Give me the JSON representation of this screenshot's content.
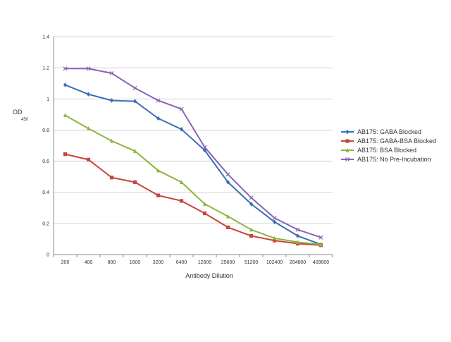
{
  "chart_data": {
    "type": "line",
    "title": "",
    "xlabel": "Antibody Dilution",
    "ylabel": "OD",
    "ylabel_subscript": "450",
    "categories": [
      "200",
      "400",
      "800",
      "1600",
      "3200",
      "6400",
      "12800",
      "25600",
      "51200",
      "102400",
      "204800",
      "409600"
    ],
    "ylim": [
      0,
      1.4
    ],
    "yticks": [
      "0",
      "0.2",
      "0.4",
      "0.6",
      "0.8",
      "1",
      "1.2",
      "1.4"
    ],
    "grid": "horizontal",
    "legend_position": "right",
    "series": [
      {
        "name": "AB175: GABA Blocked",
        "color": "#3a6fb5",
        "marker": "diamond",
        "values": [
          1.09,
          1.03,
          0.99,
          0.985,
          0.875,
          0.805,
          0.67,
          0.465,
          0.325,
          0.21,
          0.12,
          0.065
        ]
      },
      {
        "name": "AB175: GABA-BSA Blocked",
        "color": "#c8443c",
        "marker": "square",
        "values": [
          0.645,
          0.61,
          0.495,
          0.465,
          0.38,
          0.345,
          0.265,
          0.175,
          0.12,
          0.09,
          0.07,
          0.06
        ]
      },
      {
        "name": "AB175: BSA Blocked",
        "color": "#8db53e",
        "marker": "triangle",
        "values": [
          0.895,
          0.81,
          0.73,
          0.665,
          0.54,
          0.465,
          0.325,
          0.245,
          0.16,
          0.105,
          0.08,
          0.065
        ]
      },
      {
        "name": "AB175: No Pre-Incubation",
        "color": "#8a63b8",
        "marker": "x",
        "values": [
          1.195,
          1.195,
          1.165,
          1.07,
          0.99,
          0.935,
          0.69,
          0.515,
          0.365,
          0.235,
          0.16,
          0.11
        ]
      }
    ]
  }
}
